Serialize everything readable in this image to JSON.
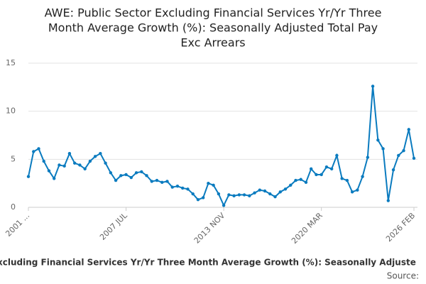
{
  "chart_data": {
    "type": "line",
    "title_lines": [
      "AWE: Public Sector Excluding Financial Services Yr/Yr Three",
      "Month Average Growth (%): Seasonally Adjusted Total Pay",
      "Exc Arrears"
    ],
    "footer_text": "xcluding Financial Services Yr/Yr Three Month Average Growth (%): Seasonally Adjuste",
    "source_text": "Source:",
    "categories": [
      "2001 ...",
      null,
      null,
      null,
      null,
      null,
      null,
      null,
      null,
      null,
      null,
      null,
      null,
      null,
      null,
      null,
      null,
      null,
      null,
      "2007 JUL",
      null,
      null,
      null,
      null,
      null,
      null,
      null,
      null,
      null,
      null,
      null,
      null,
      null,
      null,
      null,
      null,
      null,
      null,
      "2013 NOV",
      null,
      null,
      null,
      null,
      null,
      null,
      null,
      null,
      null,
      null,
      null,
      null,
      null,
      null,
      null,
      null,
      null,
      null,
      "2020 MAR",
      null,
      null,
      null,
      null,
      null,
      null,
      null,
      null,
      null,
      null,
      null,
      null,
      null,
      null,
      null,
      null,
      null,
      "2026 FEB"
    ],
    "series": [
      {
        "color": "#0a7bbf",
        "values": [
          3.2,
          5.8,
          6.1,
          4.8,
          3.8,
          3.0,
          4.4,
          4.3,
          5.6,
          4.6,
          4.4,
          4.0,
          4.8,
          5.3,
          5.6,
          4.6,
          3.6,
          2.8,
          3.3,
          3.4,
          3.1,
          3.6,
          3.7,
          3.3,
          2.7,
          2.8,
          2.6,
          2.7,
          2.1,
          2.2,
          2.0,
          1.9,
          1.4,
          0.8,
          1.0,
          2.5,
          2.3,
          1.4,
          0.2,
          1.3,
          1.2,
          1.3,
          1.3,
          1.2,
          1.5,
          1.8,
          1.7,
          1.4,
          1.1,
          1.6,
          1.9,
          2.3,
          2.8,
          2.9,
          2.6,
          4.0,
          3.4,
          3.4,
          4.2,
          4.0,
          5.4,
          3.0,
          2.8,
          1.6,
          1.8,
          3.2,
          5.2,
          12.6,
          7.0,
          6.1,
          0.7,
          3.9,
          5.4,
          5.9,
          8.1,
          5.1
        ]
      }
    ],
    "ylim": [
      0,
      15
    ],
    "yticks": [
      0,
      5,
      10,
      15
    ],
    "grid": true
  }
}
